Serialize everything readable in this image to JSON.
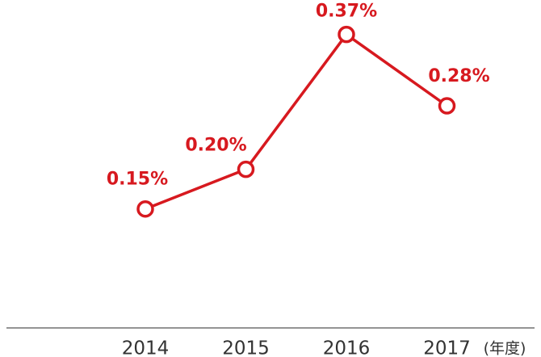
{
  "chart_data": {
    "type": "line",
    "categories": [
      "2014",
      "2015",
      "2016",
      "2017"
    ],
    "x_unit": "(年度)",
    "values": [
      0.15,
      0.2,
      0.37,
      0.28
    ],
    "value_labels": [
      "0.15%",
      "0.20%",
      "0.37%",
      "0.28%"
    ],
    "color": "#d7191f"
  }
}
